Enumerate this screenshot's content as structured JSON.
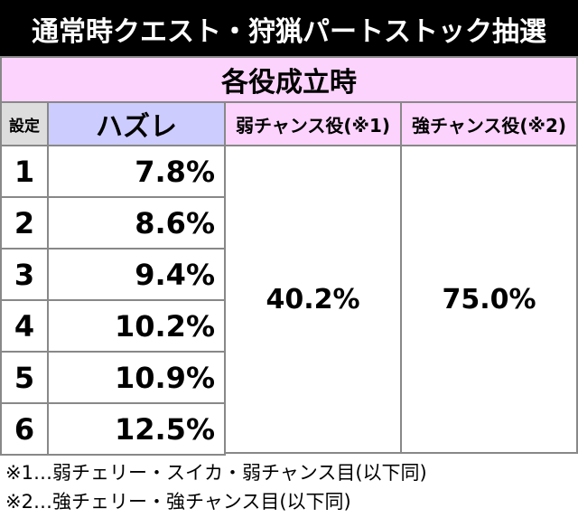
{
  "header": {
    "title": "通常時クエスト・狩猟パートストック抽選"
  },
  "table": {
    "group_header": "各役成立時",
    "columns": [
      "設定",
      "ハズレ",
      "弱チャンス役(※1)",
      "強チャンス役(※2)"
    ],
    "rows": [
      [
        "1",
        "7.8%"
      ],
      [
        "2",
        "8.6%"
      ],
      [
        "3",
        "9.4%"
      ],
      [
        "4",
        "10.2%"
      ],
      [
        "5",
        "10.9%"
      ],
      [
        "6",
        "12.5%"
      ]
    ],
    "weak_chance": "40.2%",
    "strong_chance": "75.0%"
  },
  "notes": [
    "※1…弱チェリー・スイカ・弱チャンス目(以下同)",
    "※2…強チェリー・強チャンス目(以下同)"
  ]
}
